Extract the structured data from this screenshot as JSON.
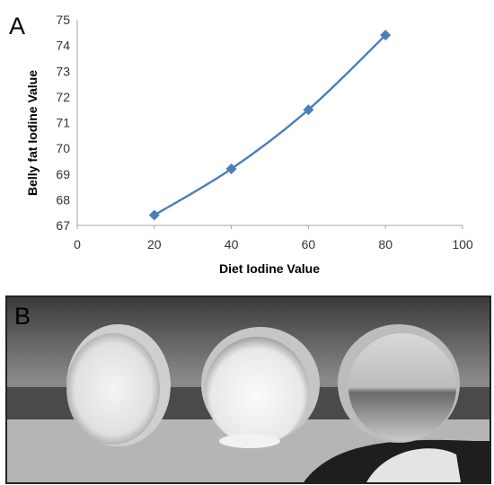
{
  "panel_a": {
    "label": "A"
  },
  "panel_b": {
    "label": "B"
  },
  "colors": {
    "series": "#4a7ebb",
    "axis": "#a6a6a6"
  },
  "chart_data": {
    "type": "scatter",
    "title": "",
    "xlabel": "Diet Iodine Value",
    "ylabel": "Belly fat Iodine Value",
    "xlim": [
      0,
      100
    ],
    "ylim": [
      67,
      75
    ],
    "xticks": [
      0,
      20,
      40,
      60,
      80,
      100
    ],
    "yticks": [
      67,
      68,
      69,
      70,
      71,
      72,
      73,
      74,
      75
    ],
    "grid": false,
    "legend": "none",
    "marker": "diamond",
    "smooth_line": true,
    "series": [
      {
        "x": [
          20,
          40,
          60,
          80
        ],
        "y": [
          67.4,
          69.2,
          71.5,
          74.4
        ]
      }
    ]
  }
}
